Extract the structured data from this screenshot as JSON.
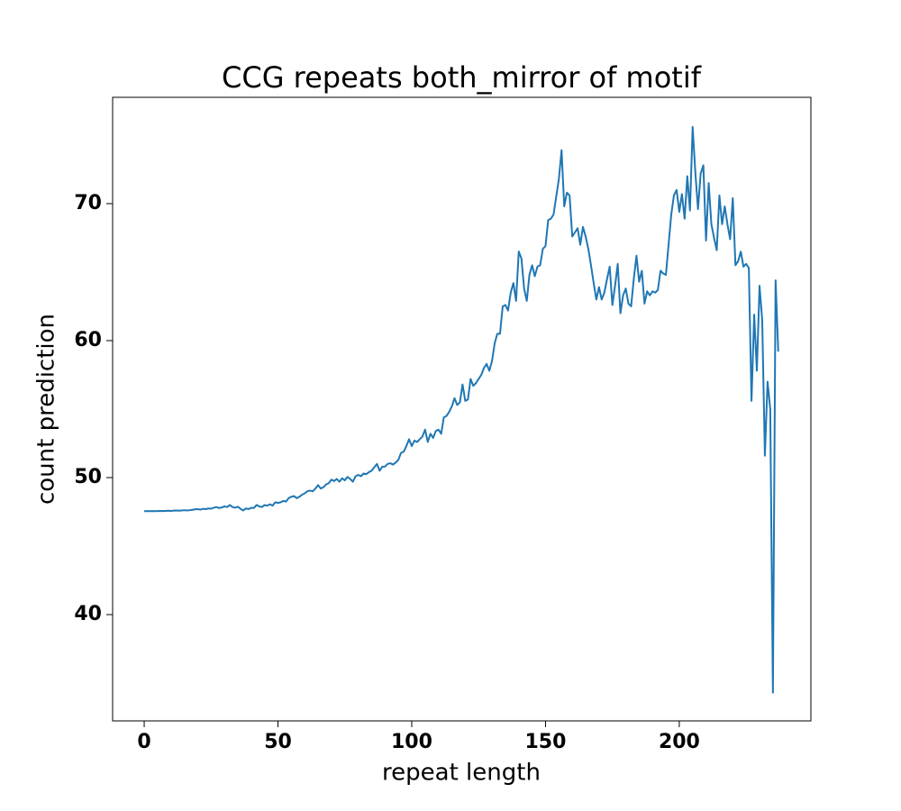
{
  "chart_data": {
    "type": "line",
    "title": "CCG repeats both_mirror of motif",
    "xlabel": "repeat length",
    "ylabel": "count prediction",
    "xlim": [
      -11.8,
      249.2
    ],
    "ylim": [
      32.24,
      77.76
    ],
    "xticks": [
      0,
      50,
      100,
      150,
      200
    ],
    "yticks": [
      40,
      50,
      60,
      70
    ],
    "grid": false,
    "x": [
      0,
      1,
      2,
      3,
      4,
      5,
      6,
      7,
      8,
      9,
      10,
      11,
      12,
      13,
      14,
      15,
      16,
      17,
      18,
      19,
      20,
      21,
      22,
      23,
      24,
      25,
      26,
      27,
      28,
      29,
      30,
      31,
      32,
      33,
      34,
      35,
      36,
      37,
      38,
      39,
      40,
      41,
      42,
      43,
      44,
      45,
      46,
      47,
      48,
      49,
      50,
      51,
      52,
      53,
      54,
      55,
      56,
      57,
      58,
      59,
      60,
      61,
      62,
      63,
      64,
      65,
      66,
      67,
      68,
      69,
      70,
      71,
      72,
      73,
      74,
      75,
      76,
      77,
      78,
      79,
      80,
      81,
      82,
      83,
      84,
      85,
      86,
      87,
      88,
      89,
      90,
      91,
      92,
      93,
      94,
      95,
      96,
      97,
      98,
      99,
      100,
      101,
      102,
      103,
      104,
      105,
      106,
      107,
      108,
      109,
      110,
      111,
      112,
      113,
      114,
      115,
      116,
      117,
      118,
      119,
      120,
      121,
      122,
      123,
      124,
      125,
      126,
      127,
      128,
      129,
      130,
      131,
      132,
      133,
      134,
      135,
      136,
      137,
      138,
      139,
      140,
      141,
      142,
      143,
      144,
      145,
      146,
      147,
      148,
      149,
      150,
      151,
      152,
      153,
      154,
      155,
      156,
      157,
      158,
      159,
      160,
      161,
      162,
      163,
      164,
      165,
      166,
      167,
      168,
      169,
      170,
      171,
      172,
      173,
      174,
      175,
      176,
      177,
      178,
      179,
      180,
      181,
      182,
      183,
      184,
      185,
      186,
      187,
      188,
      189,
      190,
      191,
      192,
      193,
      194,
      195,
      196,
      197,
      198,
      199,
      200,
      201,
      202,
      203,
      204,
      205,
      206,
      207,
      208,
      209,
      210,
      211,
      212,
      213,
      214,
      215,
      216,
      217,
      218,
      219,
      220,
      221,
      222,
      223,
      224,
      225,
      226,
      227,
      228,
      229,
      230,
      231,
      232,
      233,
      234,
      235,
      236,
      237
    ],
    "series": [
      {
        "name": "count prediction",
        "color": "#1f77b4",
        "values": [
          47.55,
          47.55,
          47.55,
          47.56,
          47.55,
          47.56,
          47.57,
          47.56,
          47.57,
          47.58,
          47.57,
          47.59,
          47.6,
          47.58,
          47.6,
          47.62,
          47.6,
          47.62,
          47.65,
          47.68,
          47.7,
          47.66,
          47.72,
          47.7,
          47.75,
          47.73,
          47.8,
          47.85,
          47.78,
          47.82,
          47.9,
          47.85,
          48.0,
          47.85,
          47.8,
          47.88,
          47.72,
          47.6,
          47.75,
          47.7,
          47.8,
          47.78,
          48.0,
          47.9,
          47.85,
          48.0,
          47.95,
          48.05,
          47.95,
          48.2,
          48.15,
          48.2,
          48.3,
          48.25,
          48.5,
          48.6,
          48.65,
          48.5,
          48.6,
          48.75,
          48.85,
          49.0,
          49.05,
          49.0,
          49.2,
          49.45,
          49.2,
          49.3,
          49.5,
          49.6,
          49.85,
          49.75,
          49.9,
          49.7,
          49.95,
          49.8,
          50.05,
          49.9,
          49.7,
          50.1,
          50.2,
          50.1,
          50.3,
          50.25,
          50.4,
          50.5,
          50.75,
          51.0,
          50.5,
          50.8,
          50.8,
          51.0,
          51.05,
          50.95,
          51.1,
          51.3,
          51.8,
          51.9,
          52.3,
          52.8,
          52.3,
          52.7,
          52.6,
          52.8,
          53.0,
          53.5,
          52.6,
          53.2,
          52.9,
          53.4,
          53.5,
          53.2,
          54.4,
          54.5,
          54.8,
          55.2,
          55.8,
          55.3,
          55.5,
          56.8,
          55.6,
          55.7,
          57.2,
          56.7,
          56.9,
          57.2,
          57.5,
          58.0,
          58.3,
          57.8,
          58.5,
          59.8,
          60.5,
          60.5,
          62.5,
          62.6,
          62.2,
          63.5,
          64.2,
          62.9,
          66.5,
          66.0,
          63.8,
          62.9,
          64.8,
          65.5,
          64.7,
          65.4,
          65.5,
          66.7,
          66.9,
          68.8,
          68.9,
          69.2,
          70.5,
          71.8,
          73.9,
          69.8,
          70.8,
          70.6,
          67.6,
          67.9,
          68.2,
          67.0,
          68.3,
          67.6,
          66.7,
          65.5,
          64.2,
          63.0,
          63.9,
          63.0,
          63.5,
          64.5,
          65.4,
          62.6,
          64.0,
          65.6,
          62.0,
          63.3,
          63.8,
          62.7,
          62.5,
          64.5,
          66.2,
          64.3,
          65.1,
          62.7,
          63.6,
          63.3,
          63.6,
          63.5,
          63.7,
          65.1,
          64.9,
          64.8,
          67.0,
          69.2,
          70.6,
          71.0,
          69.4,
          70.7,
          68.9,
          72.0,
          69.5,
          75.6,
          72.3,
          69.6,
          72.2,
          72.8,
          67.3,
          71.5,
          68.5,
          67.5,
          66.6,
          70.6,
          68.5,
          69.8,
          68.5,
          67.4,
          70.4,
          65.5,
          65.8,
          66.5,
          65.4,
          65.6,
          65.3,
          55.6,
          61.9,
          57.8,
          64.0,
          61.5,
          51.6,
          57.0,
          55.0,
          34.3,
          64.4,
          59.2
        ]
      }
    ]
  }
}
